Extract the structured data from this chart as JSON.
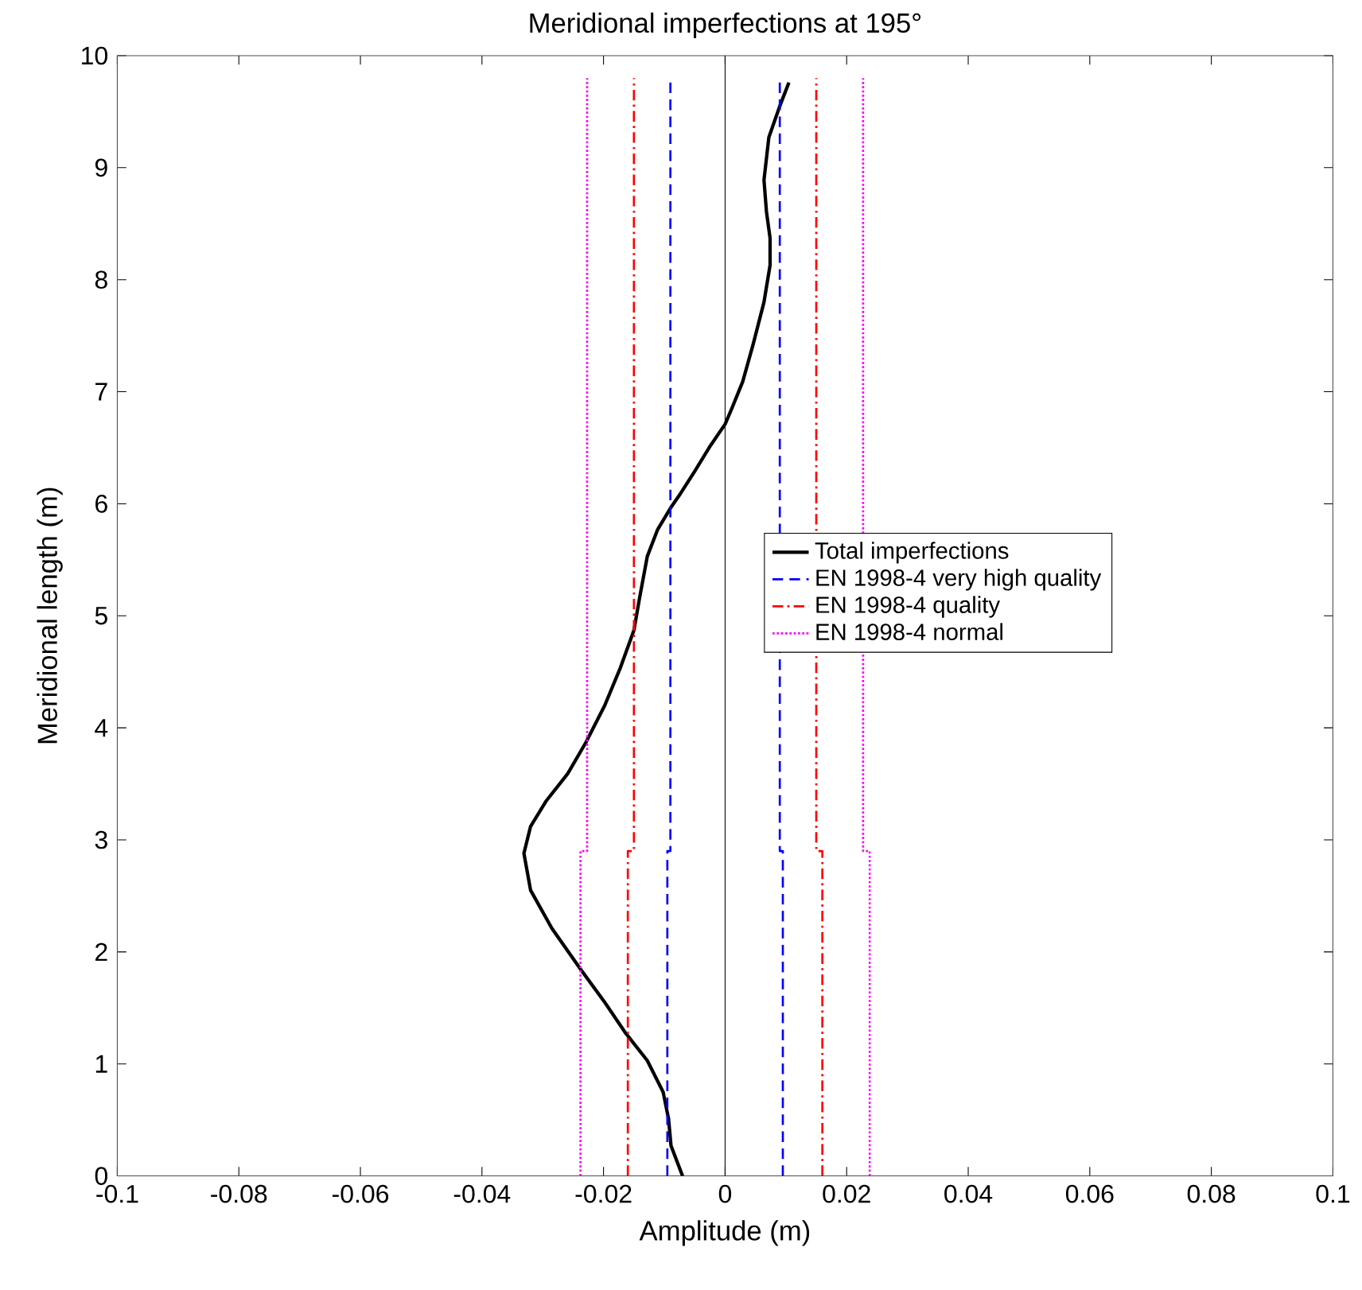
{
  "chart_data": {
    "type": "line",
    "title": "Meridional imperfections at 195°",
    "xlabel": "Amplitude (m)",
    "ylabel": "Meridional length (m)",
    "xlim": [
      -0.1,
      0.1
    ],
    "ylim": [
      0,
      10
    ],
    "xticks": [
      -0.1,
      -0.08,
      -0.06,
      -0.04,
      -0.02,
      0,
      0.02,
      0.04,
      0.06,
      0.08,
      0.1
    ],
    "yticks": [
      0,
      1,
      2,
      3,
      4,
      5,
      6,
      7,
      8,
      9,
      10
    ],
    "grid": false,
    "legend": "right",
    "ref_lines": [
      {
        "axis": "x",
        "value": 0,
        "color": "#000000"
      }
    ],
    "series": [
      {
        "name": "Total imperfections",
        "color": "#000000",
        "line_style": "solid",
        "x": [
          0.0105,
          0.009,
          0.0072,
          0.0064,
          0.0068,
          0.0074,
          0.0074,
          0.0064,
          0.0046,
          0.0029,
          0.0011,
          0,
          -0.0024,
          -0.005,
          -0.0076,
          -0.009,
          -0.0111,
          -0.0128,
          -0.0141,
          -0.015,
          -0.0172,
          -0.0198,
          -0.0229,
          -0.0259,
          -0.0294,
          -0.032,
          -0.0331,
          -0.032,
          -0.0285,
          -0.0237,
          -0.0198,
          -0.0163,
          -0.0128,
          -0.0102,
          -0.0093,
          -0.0089,
          -0.007
        ],
        "values": [
          9.76,
          9.55,
          9.27,
          8.89,
          8.61,
          8.37,
          8.13,
          7.8,
          7.42,
          7.09,
          6.85,
          6.71,
          6.52,
          6.29,
          6.07,
          5.96,
          5.77,
          5.53,
          5.15,
          4.87,
          4.54,
          4.2,
          3.87,
          3.59,
          3.35,
          3.12,
          2.88,
          2.55,
          2.21,
          1.84,
          1.55,
          1.27,
          1.03,
          0.75,
          0.51,
          0.27,
          0
        ]
      },
      {
        "name": "EN 1998-4 very high quality",
        "color": "#0000ff",
        "line_style": "dashed",
        "x": [
          -0.0095,
          -0.0095,
          -0.009,
          -0.009
        ],
        "values": [
          0,
          2.9,
          2.9,
          9.8
        ]
      },
      {
        "color": "#0000ff",
        "line_style": "dashed",
        "x": [
          0.0095,
          0.0095,
          0.009,
          0.009
        ],
        "values": [
          0,
          2.9,
          2.9,
          9.8
        ]
      },
      {
        "name": "EN 1998-4 quality",
        "color": "#ff0000",
        "line_style": "dashdot",
        "x": [
          -0.016,
          -0.016,
          -0.015,
          -0.015
        ],
        "values": [
          0,
          2.9,
          2.9,
          9.8
        ]
      },
      {
        "color": "#ff0000",
        "line_style": "dashdot",
        "x": [
          0.016,
          0.016,
          0.015,
          0.015
        ],
        "values": [
          0,
          2.9,
          2.9,
          9.8
        ]
      },
      {
        "name": "EN 1998-4 normal",
        "color": "#ff00ff",
        "line_style": "dotted",
        "x": [
          -0.0238,
          -0.0238,
          -0.0227,
          -0.0227
        ],
        "values": [
          0,
          2.9,
          2.9,
          9.8
        ]
      },
      {
        "color": "#ff00ff",
        "line_style": "dotted",
        "x": [
          0.0238,
          0.0238,
          0.0227,
          0.0227
        ],
        "values": [
          0,
          2.9,
          2.9,
          9.8
        ]
      }
    ]
  }
}
